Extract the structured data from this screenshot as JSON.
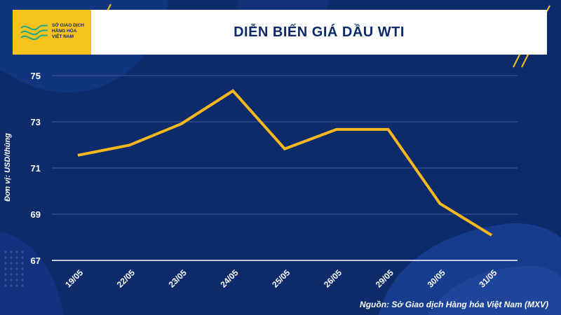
{
  "header": {
    "logo_lines": [
      "SỞ GIAO DỊCH",
      "HÀNG HÓA",
      "VIỆT NAM"
    ]
  },
  "colors": {
    "background": "#0d2a6b",
    "accent": "#f6c21c",
    "line": "#f6b81c",
    "text": "#ffffff"
  },
  "chart_data": {
    "type": "line",
    "title": "DIỄN BIẾN GIÁ DẦU WTI",
    "ylabel": "Đơn vị: USD/thùng",
    "xlabel": "",
    "categories": [
      "19/05",
      "22/05",
      "23/05",
      "24/05",
      "25/05",
      "26/05",
      "29/05",
      "30/05",
      "31/05"
    ],
    "series": [
      {
        "values": [
          71.55,
          71.99,
          72.91,
          74.34,
          71.83,
          72.67,
          72.67,
          69.46,
          68.09
        ]
      }
    ],
    "ylim": [
      67,
      75
    ],
    "yticks": [
      67,
      69,
      71,
      73,
      75
    ],
    "grid": true,
    "legend": "none"
  },
  "source": "Nguồn: Sở Giao dịch Hàng hóa Việt Nam (MXV)"
}
